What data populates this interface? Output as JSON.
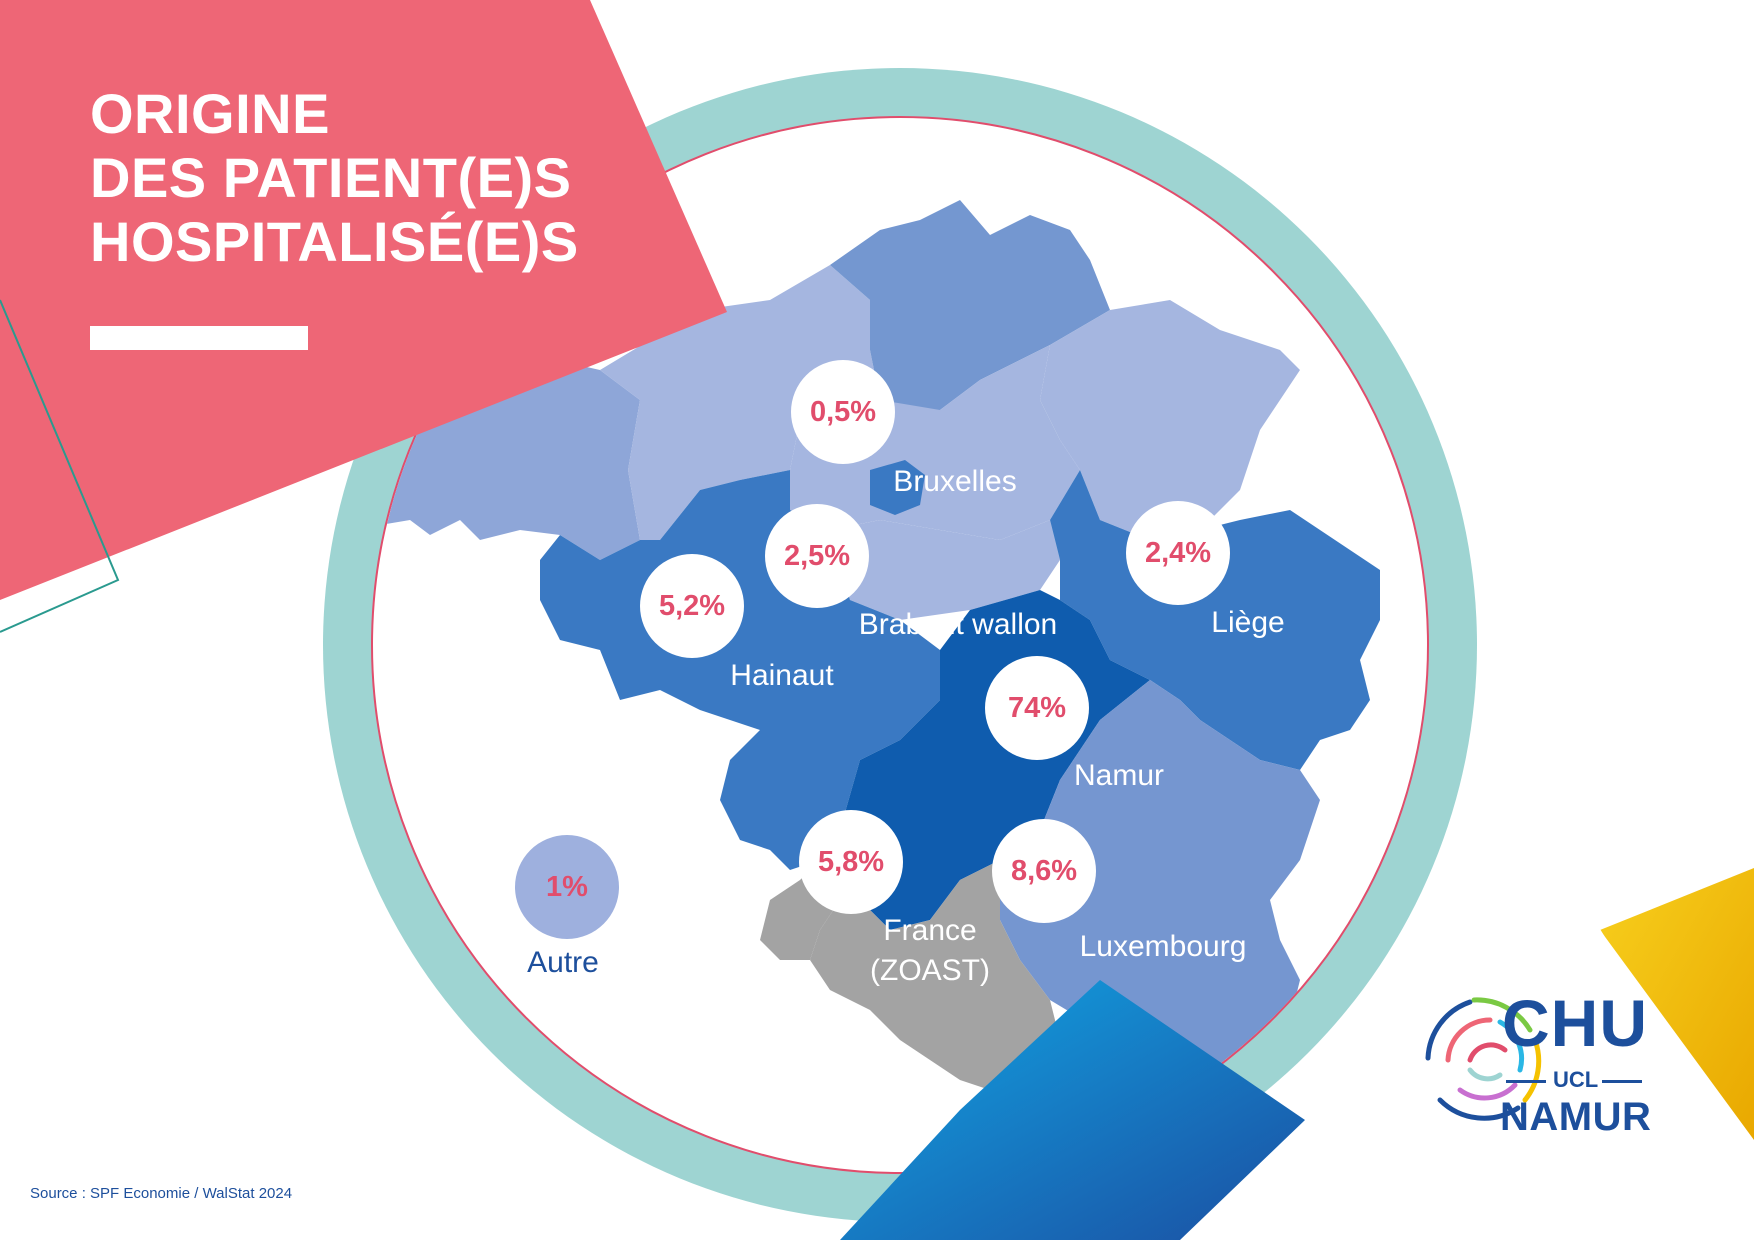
{
  "title": {
    "line1": "ORIGINE",
    "line2": "DES PATIENT(E)S",
    "line3": "HOSPITALISÉ(E)S"
  },
  "regions": [
    {
      "id": "bruxelles",
      "label": "Bruxelles",
      "value": "0,5%"
    },
    {
      "id": "brabant_wallon",
      "label": "Brabant wallon",
      "value": "2,5%"
    },
    {
      "id": "liege",
      "label": "Liège",
      "value": "2,4%"
    },
    {
      "id": "hainaut",
      "label": "Hainaut",
      "value": "5,2%"
    },
    {
      "id": "namur",
      "label": "Namur",
      "value": "74%"
    },
    {
      "id": "france",
      "label_line1": "France",
      "label_line2": "(ZOAST)",
      "value": "5,8%"
    },
    {
      "id": "luxembourg",
      "label": "Luxembourg",
      "value": "8,6%"
    },
    {
      "id": "autre",
      "label": "Autre",
      "value": "1%"
    }
  ],
  "source": "Source : SPF Economie / WalStat 2024",
  "logo": {
    "line1": "CHU",
    "line2": "UCL",
    "line3": "NAMUR"
  },
  "colors": {
    "title_banner": "#ee6676",
    "ring": "#9ed4d2",
    "namur": "#0f5cae",
    "hainaut_liege": "#3a79c3",
    "luxembourg": "#7596d0",
    "flanders_light": "#a5b6e0",
    "france": "#a3a3a3",
    "percent_text": "#e14d6c",
    "accent_yellow": "#f5c200",
    "accent_blue": "#0a9fe0"
  }
}
